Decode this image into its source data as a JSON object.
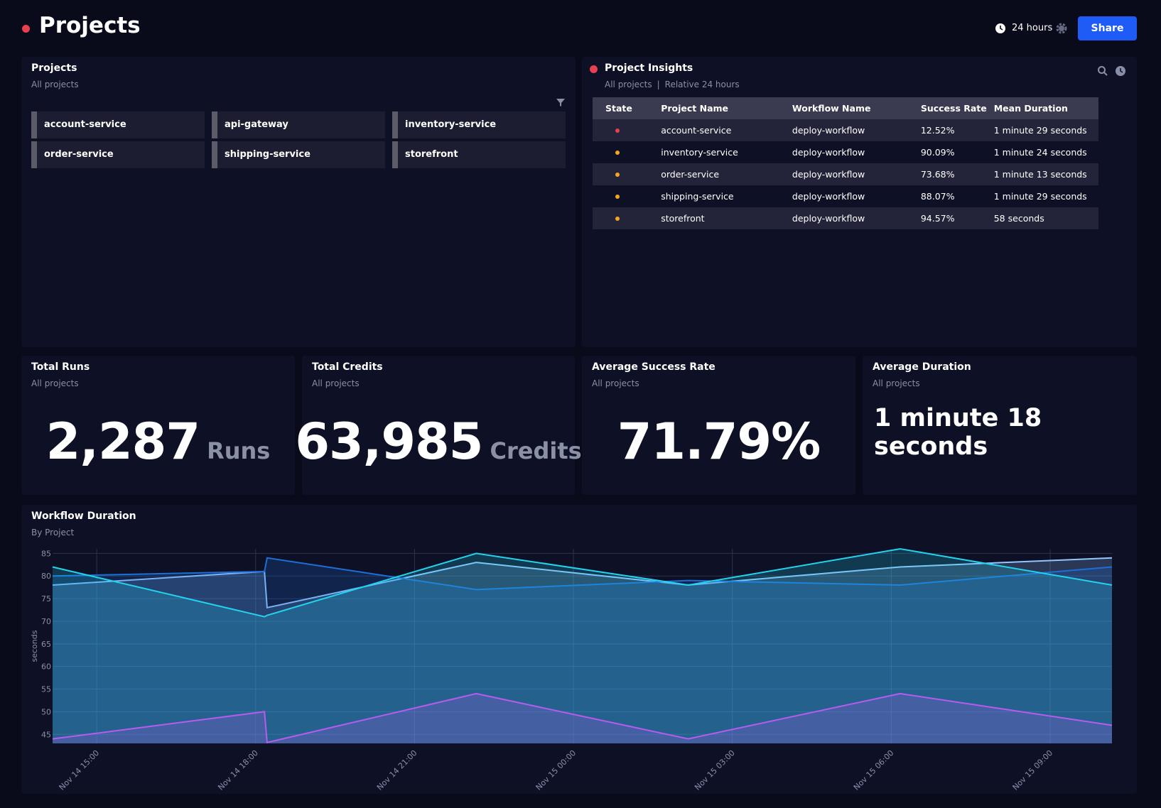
{
  "header": {
    "title": "Projects",
    "time_range": "24 hours",
    "share": "Share"
  },
  "projects_panel": {
    "title": "Projects",
    "subtitle": "All projects",
    "items": [
      "account-service",
      "api-gateway",
      "inventory-service",
      "order-service",
      "shipping-service",
      "storefront"
    ]
  },
  "insights": {
    "title": "Project Insights",
    "subtitle": [
      "All projects",
      "Relative 24 hours"
    ],
    "table": {
      "columns": [
        "State",
        "Project Name",
        "Workflow Name",
        "Success Rate",
        "Mean Duration"
      ],
      "rows": [
        {
          "color": "#e8404f",
          "cells": [
            "account-service",
            "deploy-workflow",
            "12.52%",
            "1 minute 29 seconds"
          ]
        },
        {
          "color": "#f5a524",
          "cells": [
            "inventory-service",
            "deploy-workflow",
            "90.09%",
            "1 minute 24 seconds"
          ]
        },
        {
          "color": "#f5a524",
          "cells": [
            "order-service",
            "deploy-workflow",
            "73.68%",
            "1 minute 13 seconds"
          ]
        },
        {
          "color": "#f5a524",
          "cells": [
            "shipping-service",
            "deploy-workflow",
            "88.07%",
            "1 minute 29 seconds"
          ]
        },
        {
          "color": "#f5a524",
          "cells": [
            "storefront",
            "deploy-workflow",
            "94.57%",
            "58 seconds"
          ]
        }
      ]
    }
  },
  "stats": [
    {
      "title": "Total Runs",
      "subtitle": "All projects",
      "value": "2,287",
      "unit": "Runs"
    },
    {
      "title": "Total Credits",
      "subtitle": "All projects",
      "value": "63,985",
      "unit": "Credits"
    },
    {
      "title": "Average Success Rate",
      "subtitle": "All projects",
      "value": "71.79%"
    },
    {
      "title": "Average Duration",
      "subtitle": "All projects",
      "value": "1 minute 18 seconds"
    }
  ],
  "chart_data": {
    "type": "area",
    "title": "Workflow Duration",
    "subtitle": "By Project",
    "y_label": "seconds",
    "x": [
      "Nov 14 14:10",
      "Nov 14 18:10",
      "Nov 14 18:13",
      "Nov 14 22:10",
      "Nov 15 02:10",
      "Nov 15 06:10",
      "Nov 15 10:10"
    ],
    "xlim": [
      "Nov 14 14:10",
      "Nov 15 10:10"
    ],
    "xticks": [
      "Nov 14 15:00",
      "Nov 14 18:00",
      "Nov 14 21:00",
      "Nov 15 00:00",
      "Nov 15 03:00",
      "Nov 15 06:00",
      "Nov 15 09:00"
    ],
    "ylim": [
      43,
      86
    ],
    "yticks": [
      45,
      50,
      55,
      60,
      65,
      70,
      75,
      80,
      85
    ],
    "grid": true,
    "series": [
      {
        "color": "#93c5fd",
        "values": [
          78,
          81,
          73,
          83,
          78,
          82,
          84
        ]
      },
      {
        "color": "#1d6fd8",
        "values": [
          80,
          81,
          84,
          77,
          79,
          78,
          82
        ]
      },
      {
        "color": "#22d3ee",
        "values": [
          82,
          71,
          71.3,
          85,
          78,
          86,
          78
        ]
      },
      {
        "color": "#b65cf0",
        "values": [
          44,
          50,
          43.2,
          54,
          44,
          54,
          47
        ]
      }
    ]
  }
}
